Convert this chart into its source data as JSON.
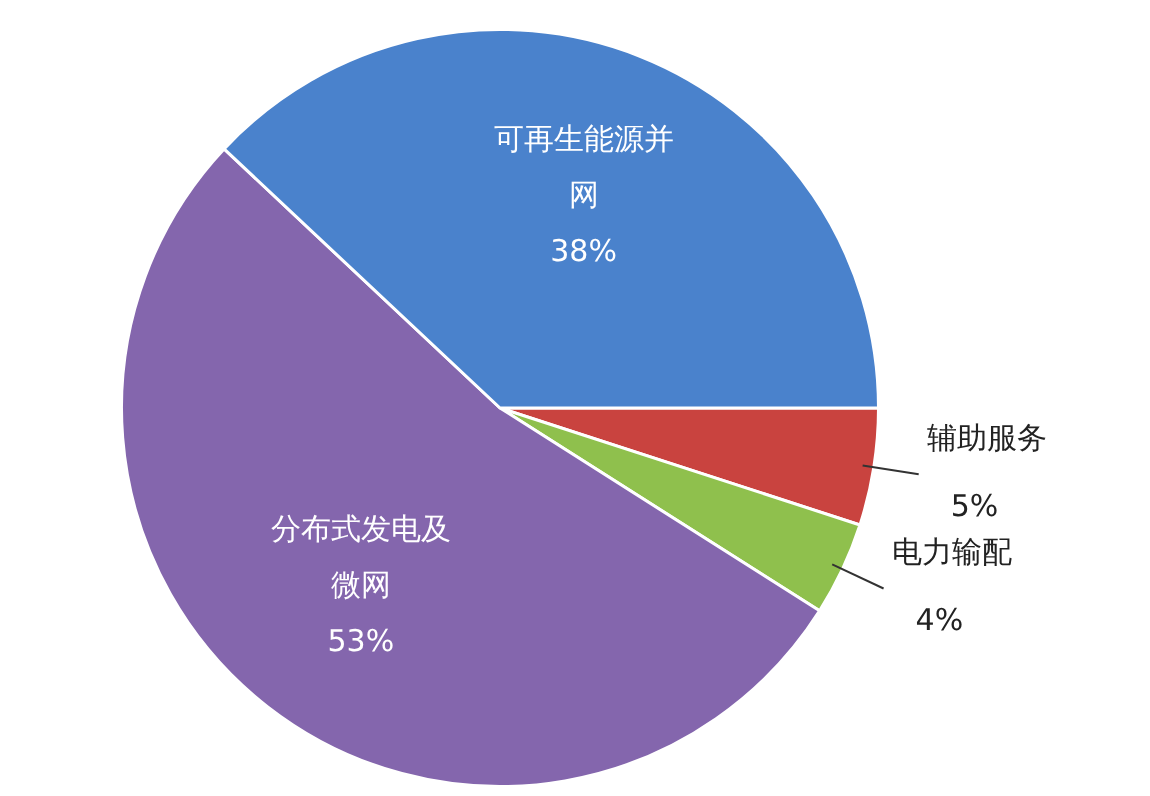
{
  "chart_data": {
    "type": "pie",
    "categories": [
      "辅助服务",
      "电力输配",
      "分布式发电及微网",
      "可再生能源并网"
    ],
    "values": [
      5,
      4,
      53,
      38
    ],
    "colors": [
      "#c9433f",
      "#8fc04d",
      "#8466ad",
      "#4a82cc"
    ],
    "value_labels": [
      "5%",
      "4%",
      "53%",
      "38%"
    ],
    "legend": false
  }
}
